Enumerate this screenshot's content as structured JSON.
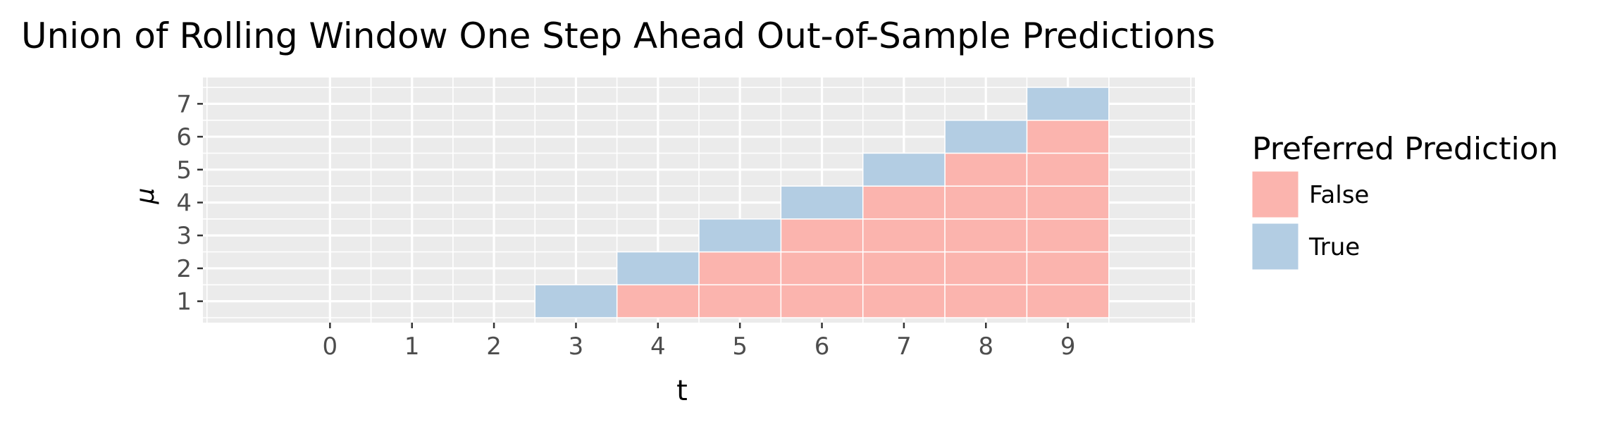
{
  "chart_data": {
    "type": "heatmap",
    "title": "Union of Rolling Window One Step Ahead Out-of-Sample Predictions",
    "xlabel": "t",
    "ylabel": "μ",
    "x_ticks": [
      "0",
      "1",
      "2",
      "3",
      "4",
      "5",
      "6",
      "7",
      "8",
      "9"
    ],
    "y_ticks": [
      "1",
      "2",
      "3",
      "4",
      "5",
      "6",
      "7"
    ],
    "xlim": [
      -1.55,
      10.55
    ],
    "ylim": [
      0.35,
      7.8
    ],
    "grid": true,
    "legend": {
      "title": "Preferred Prediction",
      "position": "right",
      "entries": [
        {
          "label": "False",
          "color": "#FBB4AE"
        },
        {
          "label": "True",
          "color": "#B3CDE3"
        }
      ]
    },
    "series": [
      {
        "name": "False",
        "color": "#FBB4AE",
        "points": [
          [
            4,
            1
          ],
          [
            5,
            1
          ],
          [
            5,
            2
          ],
          [
            6,
            1
          ],
          [
            6,
            2
          ],
          [
            6,
            3
          ],
          [
            7,
            1
          ],
          [
            7,
            2
          ],
          [
            7,
            3
          ],
          [
            7,
            4
          ],
          [
            8,
            1
          ],
          [
            8,
            2
          ],
          [
            8,
            3
          ],
          [
            8,
            4
          ],
          [
            8,
            5
          ],
          [
            9,
            1
          ],
          [
            9,
            2
          ],
          [
            9,
            3
          ],
          [
            9,
            4
          ],
          [
            9,
            5
          ],
          [
            9,
            6
          ]
        ]
      },
      {
        "name": "True",
        "color": "#B3CDE3",
        "points": [
          [
            3,
            1
          ],
          [
            4,
            2
          ],
          [
            5,
            3
          ],
          [
            6,
            4
          ],
          [
            7,
            5
          ],
          [
            8,
            6
          ],
          [
            9,
            7
          ]
        ]
      }
    ]
  },
  "colors": {
    "panel_background": "#EBEBEB",
    "grid_line": "#FFFFFF",
    "axis_text": "#4D4D4D",
    "title_text": "#000000"
  }
}
